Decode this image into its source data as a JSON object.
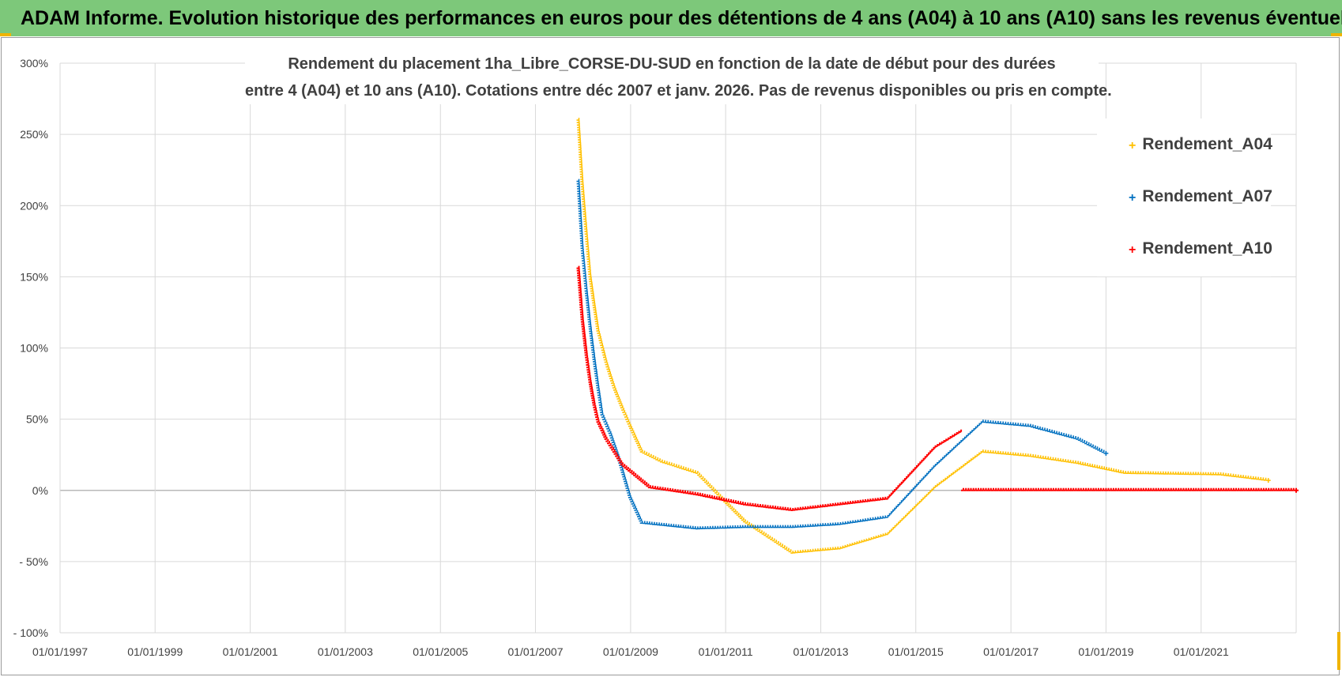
{
  "banner": {
    "title": "ADAM Informe. Evolution historique des performances en euros pour des détentions de 4 ans (A04) à 10 ans (A10) sans les revenus éventuels"
  },
  "colors": {
    "banner_bg": "#7dc87a",
    "A04": "#ffc000",
    "A07": "#0070c0",
    "A10": "#ff0000",
    "accent": "#f0b400"
  },
  "chart_data": {
    "type": "scatter",
    "title_line1": "Rendement du placement 1ha_Libre_CORSE-DU-SUD en fonction de la date de début pour des durées",
    "title_line2": "entre 4 (A04) et 10 ans (A10).  Cotations entre déc 2007 et janv. 2026.  Pas de revenus disponibles ou pris en compte.",
    "xlabel": "",
    "ylabel": "",
    "x_ticks": [
      "01/01/1997",
      "01/01/1999",
      "01/01/2001",
      "01/01/2003",
      "01/01/2005",
      "01/01/2007",
      "01/01/2009",
      "01/01/2011",
      "01/01/2013",
      "01/01/2015",
      "01/01/2017",
      "01/01/2019",
      "01/01/2021"
    ],
    "xlim": [
      "1997-01-01",
      "2023-01-01"
    ],
    "y_ticks": [
      "300%",
      "250%",
      "200%",
      "150%",
      "100%",
      "50%",
      "0%",
      "- 50%",
      "- 100%"
    ],
    "ylim": [
      -100,
      300
    ],
    "grid": true,
    "legend_position": "top-right",
    "series": [
      {
        "name": "Rendement_A04",
        "color": "#ffc000",
        "points": [
          [
            "2007-12-01",
            260
          ],
          [
            "2008-01-01",
            215
          ],
          [
            "2008-02-01",
            180
          ],
          [
            "2008-03-01",
            150
          ],
          [
            "2008-04-01",
            130
          ],
          [
            "2008-05-01",
            112
          ],
          [
            "2008-07-01",
            90
          ],
          [
            "2008-09-01",
            72
          ],
          [
            "2008-11-01",
            58
          ],
          [
            "2009-01-01",
            45
          ],
          [
            "2009-04-01",
            27
          ],
          [
            "2009-09-01",
            20
          ],
          [
            "2010-06-01",
            12
          ],
          [
            "2011-01-01",
            -8
          ],
          [
            "2011-06-01",
            -22
          ],
          [
            "2012-06-01",
            -44
          ],
          [
            "2013-06-01",
            -41
          ],
          [
            "2014-06-01",
            -31
          ],
          [
            "2015-06-01",
            2
          ],
          [
            "2016-06-01",
            27
          ],
          [
            "2017-06-01",
            24
          ],
          [
            "2018-06-01",
            19
          ],
          [
            "2019-06-01",
            12
          ],
          [
            "2021-06-01",
            11
          ],
          [
            "2022-06-01",
            7
          ]
        ]
      },
      {
        "name": "Rendement_A07",
        "color": "#0070c0",
        "points": [
          [
            "2007-12-01",
            217
          ],
          [
            "2008-01-01",
            170
          ],
          [
            "2008-02-01",
            140
          ],
          [
            "2008-03-01",
            115
          ],
          [
            "2008-04-01",
            92
          ],
          [
            "2008-05-01",
            72
          ],
          [
            "2008-06-01",
            53
          ],
          [
            "2008-08-01",
            40
          ],
          [
            "2008-10-01",
            24
          ],
          [
            "2009-01-01",
            -5
          ],
          [
            "2009-04-01",
            -23
          ],
          [
            "2010-06-01",
            -27
          ],
          [
            "2011-06-01",
            -26
          ],
          [
            "2012-06-01",
            -26
          ],
          [
            "2013-06-01",
            -24
          ],
          [
            "2014-06-01",
            -19
          ],
          [
            "2015-06-01",
            17
          ],
          [
            "2016-06-01",
            48
          ],
          [
            "2017-06-01",
            45
          ],
          [
            "2018-06-01",
            36
          ],
          [
            "2019-01-01",
            26
          ]
        ]
      },
      {
        "name": "Rendement_A10",
        "color": "#ff0000",
        "points": [
          [
            "2007-12-01",
            156
          ],
          [
            "2008-01-01",
            120
          ],
          [
            "2008-02-01",
            95
          ],
          [
            "2008-03-01",
            76
          ],
          [
            "2008-04-01",
            60
          ],
          [
            "2008-05-01",
            48
          ],
          [
            "2008-07-01",
            36
          ],
          [
            "2008-09-01",
            27
          ],
          [
            "2008-11-01",
            18
          ],
          [
            "2009-06-01",
            2
          ],
          [
            "2010-06-01",
            -3
          ],
          [
            "2011-06-01",
            -10
          ],
          [
            "2012-06-01",
            -14
          ],
          [
            "2013-06-01",
            -10
          ],
          [
            "2014-06-01",
            -6
          ],
          [
            "2015-06-01",
            30
          ],
          [
            "2016-01-01",
            42
          ],
          [
            "2016-01-02",
            0
          ],
          [
            "2018-01-01",
            0
          ],
          [
            "2020-01-01",
            0
          ],
          [
            "2022-01-01",
            0
          ],
          [
            "2023-01-01",
            0
          ]
        ]
      }
    ]
  }
}
